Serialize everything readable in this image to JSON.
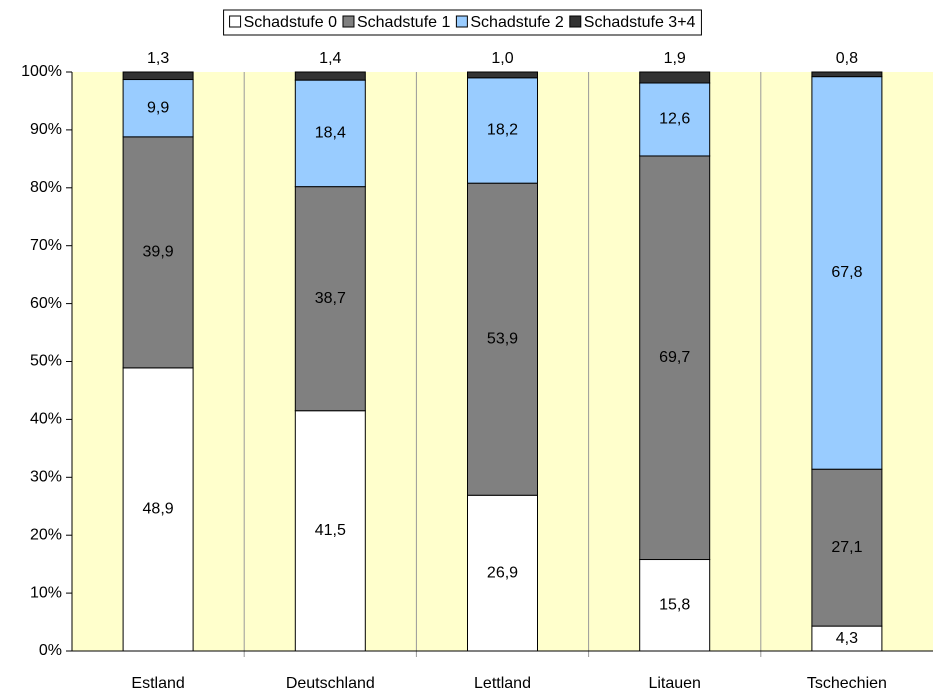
{
  "chart_data": {
    "type": "stacked-bar",
    "categories": [
      "Estland",
      "Deutschland",
      "Lettland",
      "Litauen",
      "Tschechien"
    ],
    "series": [
      {
        "name": "Schadstufe 0",
        "color": "#ffffff",
        "values": [
          48.9,
          41.5,
          26.9,
          15.8,
          4.3
        ],
        "value_labels": [
          "48,9",
          "41,5",
          "26,9",
          "15,8",
          "4,3"
        ]
      },
      {
        "name": "Schadstufe 1",
        "color": "#808080",
        "values": [
          39.9,
          38.7,
          53.9,
          69.7,
          27.1
        ],
        "value_labels": [
          "39,9",
          "38,7",
          "53,9",
          "69,7",
          "27,1"
        ]
      },
      {
        "name": "Schadstufe 2",
        "color": "#99ccff",
        "values": [
          9.9,
          18.4,
          18.2,
          12.6,
          67.8
        ],
        "value_labels": [
          "9,9",
          "18,4",
          "18,2",
          "12,6",
          "67,8"
        ]
      },
      {
        "name": "Schadstufe 3+4",
        "color": "#333333",
        "values": [
          1.3,
          1.4,
          1.0,
          1.9,
          0.8
        ],
        "value_labels": [
          "1,3",
          "1,4",
          "1,0",
          "1,9",
          "0,8"
        ]
      }
    ],
    "ylim": [
      0,
      100
    ],
    "yticks": [
      {
        "value": 0,
        "label": "0%"
      },
      {
        "value": 10,
        "label": "10%"
      },
      {
        "value": 20,
        "label": "20%"
      },
      {
        "value": 30,
        "label": "30%"
      },
      {
        "value": 40,
        "label": "40%"
      },
      {
        "value": 50,
        "label": "50%"
      },
      {
        "value": 60,
        "label": "60%"
      },
      {
        "value": 70,
        "label": "70%"
      },
      {
        "value": 80,
        "label": "80%"
      },
      {
        "value": 90,
        "label": "90%"
      },
      {
        "value": 100,
        "label": "100%"
      }
    ],
    "grid": false,
    "legend": "top"
  }
}
